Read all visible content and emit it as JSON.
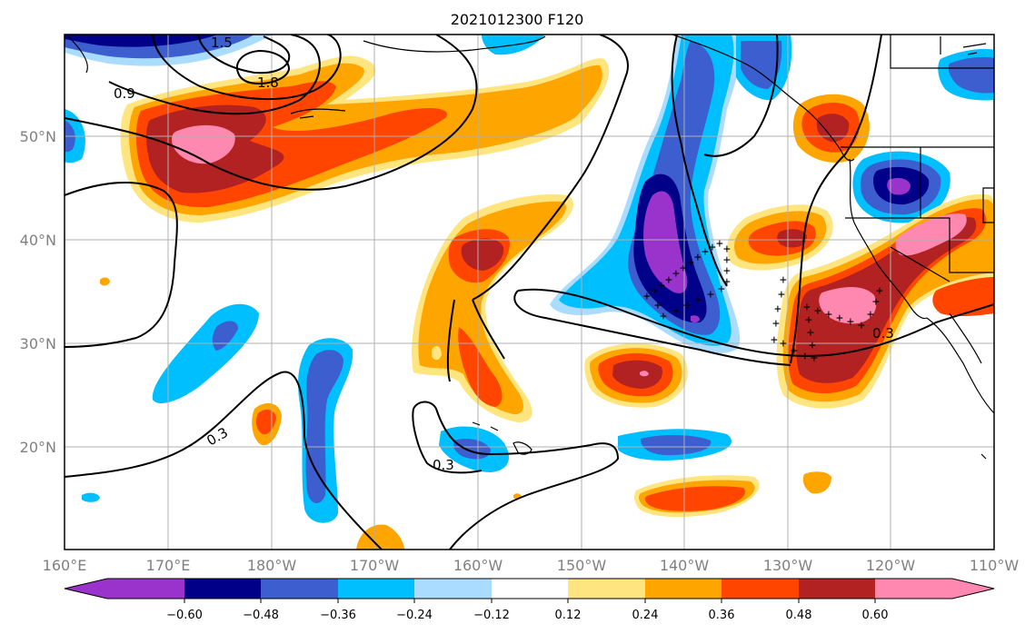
{
  "title": "2021012300 F120",
  "colors": {
    "c1": "#9933cc",
    "c2": "#000088",
    "c3": "#3c5ecf",
    "c4": "#00bfff",
    "c5": "#aadcff",
    "c6": "#ffffff",
    "c7": "#ffe57f",
    "c8": "#ffa500",
    "c9": "#ff4500",
    "c10": "#b22222",
    "c11": "#ff88b0"
  },
  "axes": {
    "lon_ticks": [
      "160°E",
      "170°E",
      "180°W",
      "170°W",
      "160°W",
      "150°W",
      "140°W",
      "130°W",
      "120°W",
      "110°W"
    ],
    "lat_ticks": [
      "50°N",
      "40°N",
      "30°N",
      "20°N"
    ]
  },
  "colorbar": {
    "levels": [
      "−0.60",
      "−0.48",
      "−0.36",
      "−0.24",
      "−0.12",
      "0.12",
      "0.24",
      "0.36",
      "0.48",
      "0.60"
    ]
  },
  "contour_labels": [
    "1.5",
    "1.8",
    "0.9",
    "0.3",
    "0.3",
    "0.3"
  ]
}
